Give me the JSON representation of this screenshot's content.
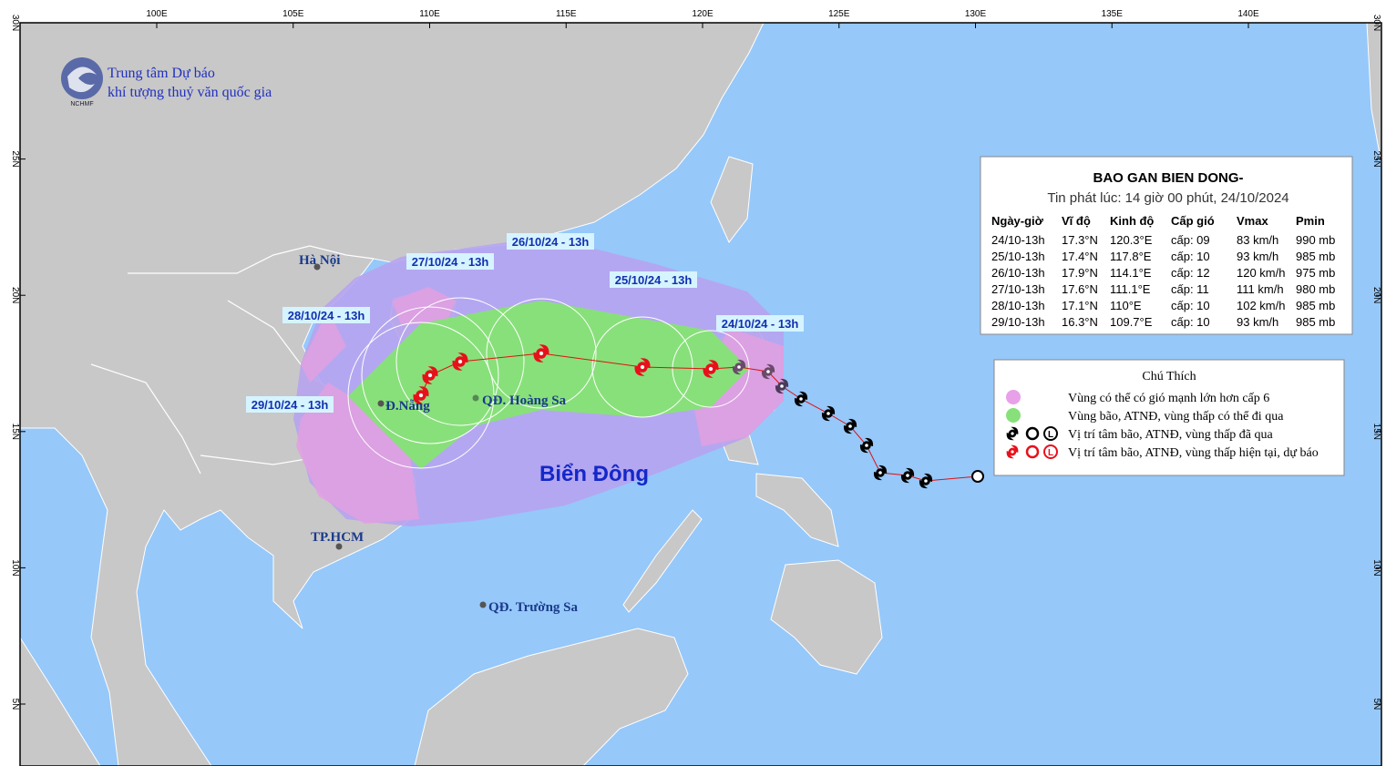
{
  "header": {
    "org_line1": "Trung tâm Dự báo",
    "org_line2": "khí tượng thuỷ văn quốc gia",
    "logo_text": "NCHMF"
  },
  "map": {
    "lon_labels": [
      "100E",
      "105E",
      "110E",
      "115E",
      "120E",
      "125E",
      "130E",
      "135E",
      "140E"
    ],
    "lat_labels": [
      "30N",
      "25N",
      "20N",
      "15N",
      "10N",
      "5N"
    ],
    "places": [
      "Hà Nội",
      "Đ.Nẵng",
      "QĐ. Hoàng Sa",
      "TP.HCM",
      "QĐ. Trường Sa"
    ],
    "sea_label": "Biển Đông",
    "track_labels": [
      "26/10/24 - 13h",
      "27/10/24 - 13h",
      "25/10/24 - 13h",
      "28/10/24 - 13h",
      "24/10/24 - 13h",
      "29/10/24 - 13h"
    ]
  },
  "info_box": {
    "title": "BAO GAN BIEN DONG-",
    "issued": "Tin phát lúc: 14 giờ 00 phút, 24/10/2024",
    "columns": [
      "Ngày-giờ",
      "Vĩ độ",
      "Kinh độ",
      "Cấp gió",
      "Vmax",
      "Pmin"
    ],
    "rows": [
      [
        "24/10-13h",
        "17.3°N",
        "120.3°E",
        "cấp: 09",
        "83 km/h",
        "990 mb"
      ],
      [
        "25/10-13h",
        "17.4°N",
        "117.8°E",
        "cấp: 10",
        "93 km/h",
        "985 mb"
      ],
      [
        "26/10-13h",
        "17.9°N",
        "114.1°E",
        "cấp: 12",
        "120 km/h",
        "975 mb"
      ],
      [
        "27/10-13h",
        "17.6°N",
        "111.1°E",
        "cấp: 11",
        "111 km/h",
        "980 mb"
      ],
      [
        "28/10-13h",
        "17.1°N",
        "110°E",
        "cấp: 10",
        "102 km/h",
        "985 mb"
      ],
      [
        "29/10-13h",
        "16.3°N",
        "109.7°E",
        "cấp: 10",
        "93 km/h",
        "985 mb"
      ]
    ]
  },
  "legend": {
    "title": "Chú Thích",
    "low_symbol": "L",
    "items": [
      "Vùng có thể có gió mạnh lớn hơn cấp 6",
      "Vùng bão, ATNĐ, vùng thấp có thể đi qua",
      "Vị trí tâm bão, ATNĐ, vùng thấp đã qua",
      "Vị trí tâm bão, ATNĐ, vùng thấp hiện tại, dự báo"
    ]
  }
}
